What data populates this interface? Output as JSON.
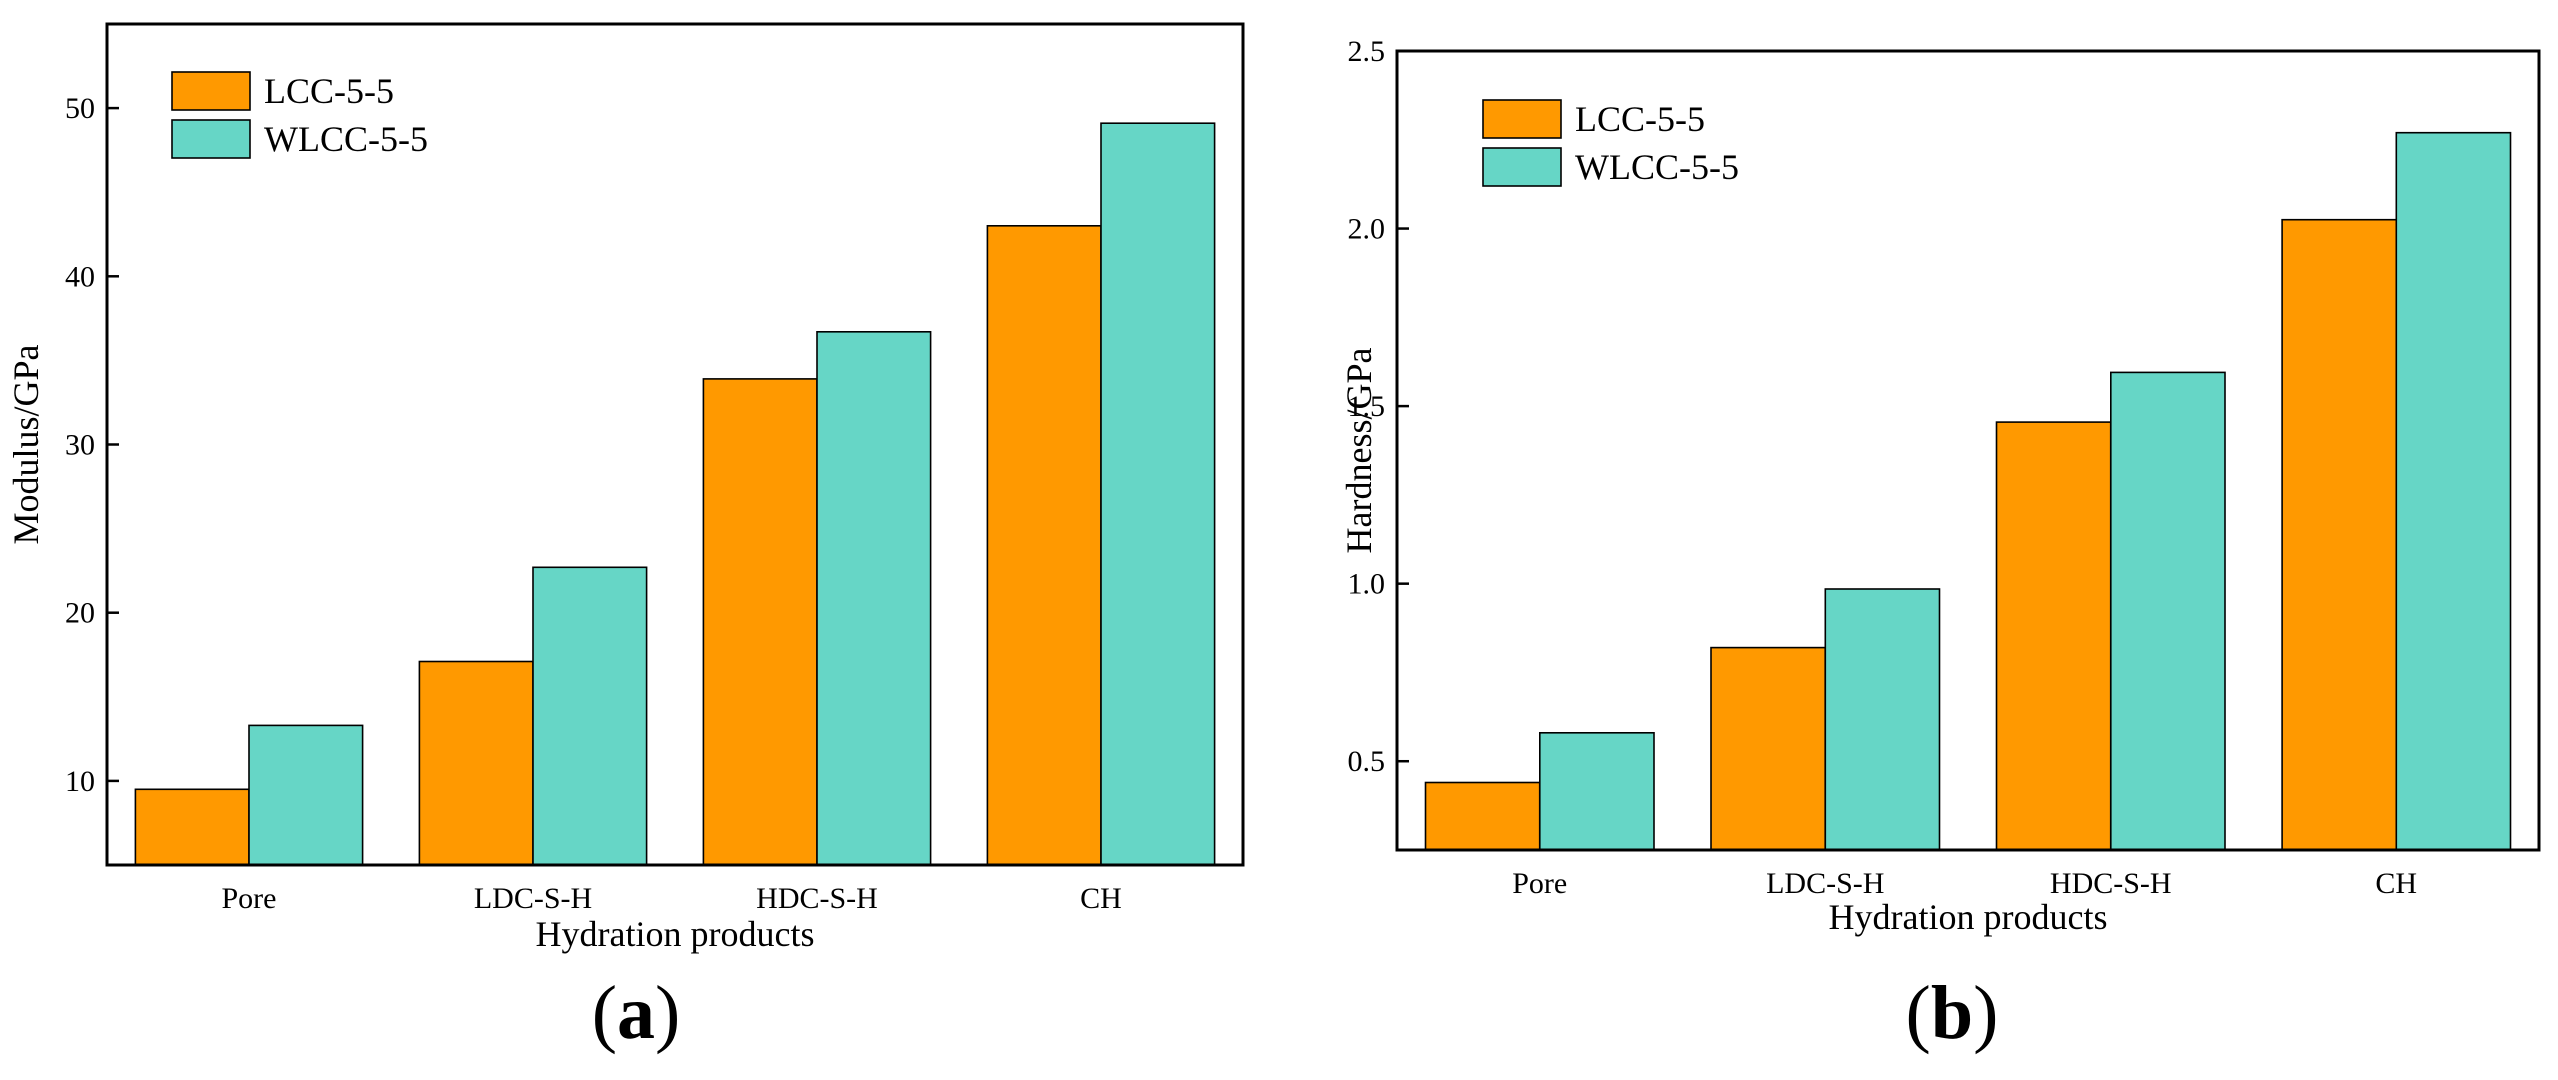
{
  "chart_data": [
    {
      "panel": "a",
      "type": "bar",
      "categories": [
        "Pore",
        "LDC-S-H",
        "HDC-S-H",
        "CH"
      ],
      "series": [
        {
          "name": "LCC-5-5",
          "values": [
            9.5,
            17.1,
            33.9,
            43.0
          ]
        },
        {
          "name": "WLCC-5-5",
          "values": [
            13.3,
            22.7,
            36.7,
            49.1
          ]
        }
      ],
      "xlabel": "Hydration products",
      "ylabel": "Modulus/GPa",
      "ylim": [
        5,
        55
      ],
      "yticks": [
        "10",
        "20",
        "30",
        "40",
        "50"
      ],
      "grid": false,
      "legend_position": "top-left"
    },
    {
      "panel": "b",
      "type": "bar",
      "categories": [
        "Pore",
        "LDC-S-H",
        "HDC-S-H",
        "CH"
      ],
      "series": [
        {
          "name": "LCC-5-5",
          "values": [
            0.44,
            0.82,
            1.455,
            2.025
          ]
        },
        {
          "name": "WLCC-5-5",
          "values": [
            0.58,
            0.985,
            1.595,
            2.27
          ]
        }
      ],
      "xlabel": "Hydration products",
      "ylabel": "Hardness/GPa",
      "ylim": [
        0.25,
        2.5
      ],
      "yticks": [
        "0.5",
        "1.0",
        "1.5",
        "2.0",
        "2.5"
      ],
      "grid": false,
      "legend_position": "top-left"
    }
  ],
  "colors": {
    "LCC-5-5": "#FF9900",
    "WLCC-5-5": "#66D6C6",
    "axis": "#000000"
  },
  "panel_labels": {
    "a": {
      "open": "(",
      "letter": "a",
      "close": ")"
    },
    "b": {
      "open": "(",
      "letter": "b",
      "close": ")"
    }
  }
}
